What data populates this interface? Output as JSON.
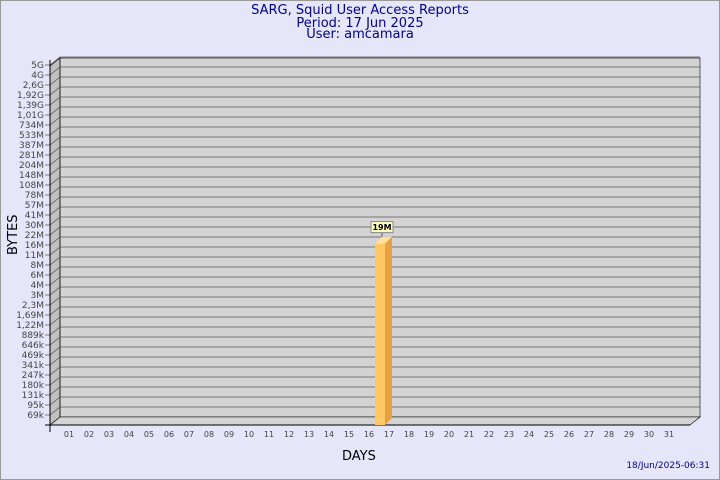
{
  "title": "SARG, Squid User Access Reports",
  "period": "Period: 17 Jun 2025",
  "user": "User: amcamara",
  "timestamp": "18/Jun/2025-06:31",
  "chart_data": {
    "type": "bar",
    "xlabel": "DAYS",
    "ylabel": "BYTES",
    "y_scale": "log",
    "y_ticks": [
      "5G",
      "4G",
      "2,6G",
      "1,92G",
      "1,39G",
      "1,01G",
      "734M",
      "533M",
      "387M",
      "281M",
      "204M",
      "148M",
      "108M",
      "78M",
      "57M",
      "41M",
      "30M",
      "22M",
      "16M",
      "11M",
      "8M",
      "6M",
      "4M",
      "3M",
      "2,3M",
      "1,69M",
      "1,22M",
      "889k",
      "646k",
      "469k",
      "341k",
      "247k",
      "180k",
      "131k",
      "95k",
      "69k"
    ],
    "categories": [
      "01",
      "02",
      "03",
      "04",
      "05",
      "06",
      "07",
      "08",
      "09",
      "10",
      "11",
      "12",
      "13",
      "14",
      "15",
      "16",
      "17",
      "18",
      "19",
      "20",
      "21",
      "22",
      "23",
      "24",
      "25",
      "26",
      "27",
      "28",
      "29",
      "30",
      "31"
    ],
    "series": [
      {
        "values": [
          null,
          null,
          null,
          null,
          null,
          null,
          null,
          null,
          null,
          null,
          null,
          null,
          null,
          null,
          null,
          null,
          19,
          null,
          null,
          null,
          null,
          null,
          null,
          null,
          null,
          null,
          null,
          null,
          null,
          null,
          null
        ],
        "unit": "M",
        "labels": {
          "17": "19M"
        }
      }
    ],
    "bar_color": "#ffc864",
    "grid": true
  }
}
